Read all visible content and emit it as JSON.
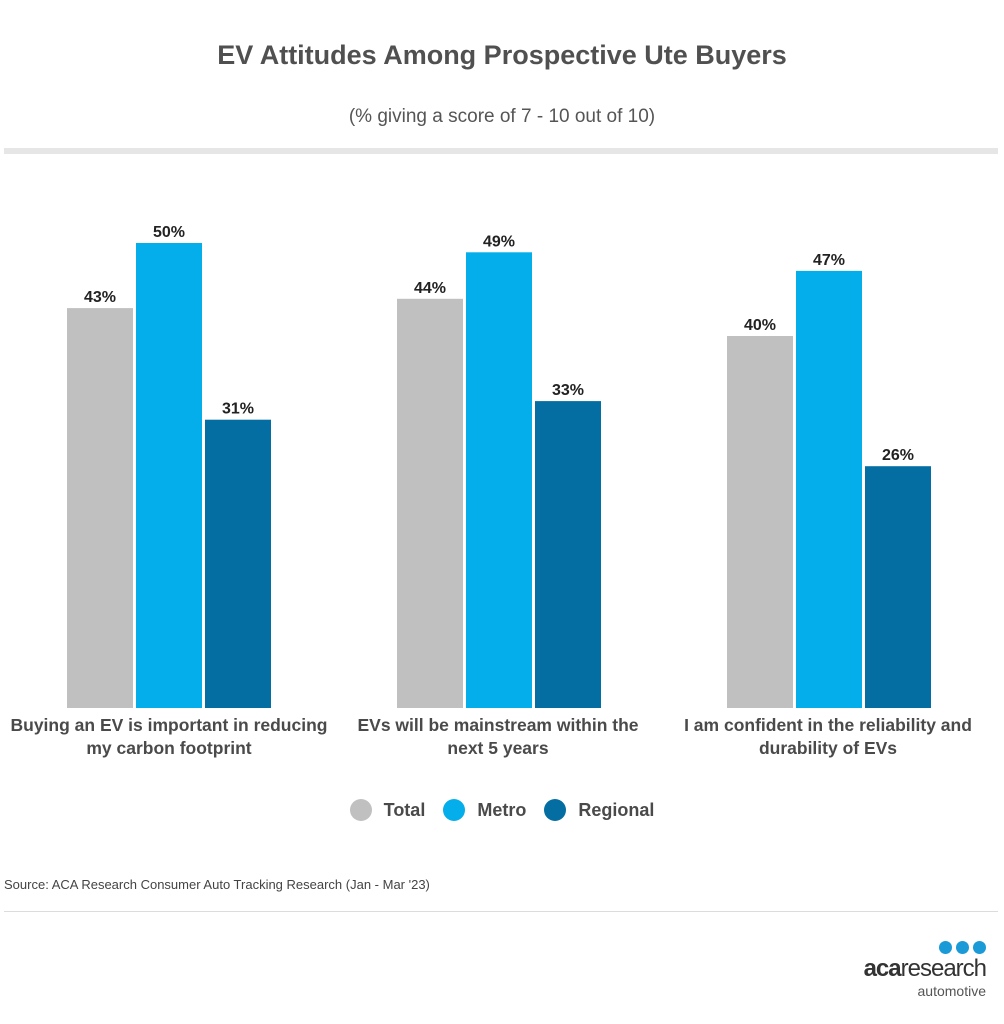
{
  "header": {
    "title": "EV Attitudes Among Prospective Ute Buyers",
    "subtitle": "(% giving a score of 7 - 10 out of 10)"
  },
  "chart_data": {
    "type": "bar",
    "categories": [
      "Buying an EV is important in reducing my carbon footprint",
      "EVs will be mainstream within the next 5 years",
      "I am confident in the reliability and durability of EVs"
    ],
    "series": [
      {
        "name": "Total",
        "color": "#c0c0c0",
        "values": [
          43,
          44,
          40
        ]
      },
      {
        "name": "Metro",
        "color": "#04aeea",
        "values": [
          50,
          49,
          47
        ]
      },
      {
        "name": "Regional",
        "color": "#046ea3",
        "values": [
          31,
          33,
          26
        ]
      }
    ],
    "value_suffix": "%",
    "ylim": [
      0,
      100
    ],
    "grid": false,
    "legend_position": "bottom"
  },
  "footer": {
    "source": "Source: ACA Research Consumer Auto Tracking Research (Jan - Mar '23)"
  },
  "logo": {
    "main_a": "aca",
    "main_b": "research",
    "sub": "automotive"
  }
}
